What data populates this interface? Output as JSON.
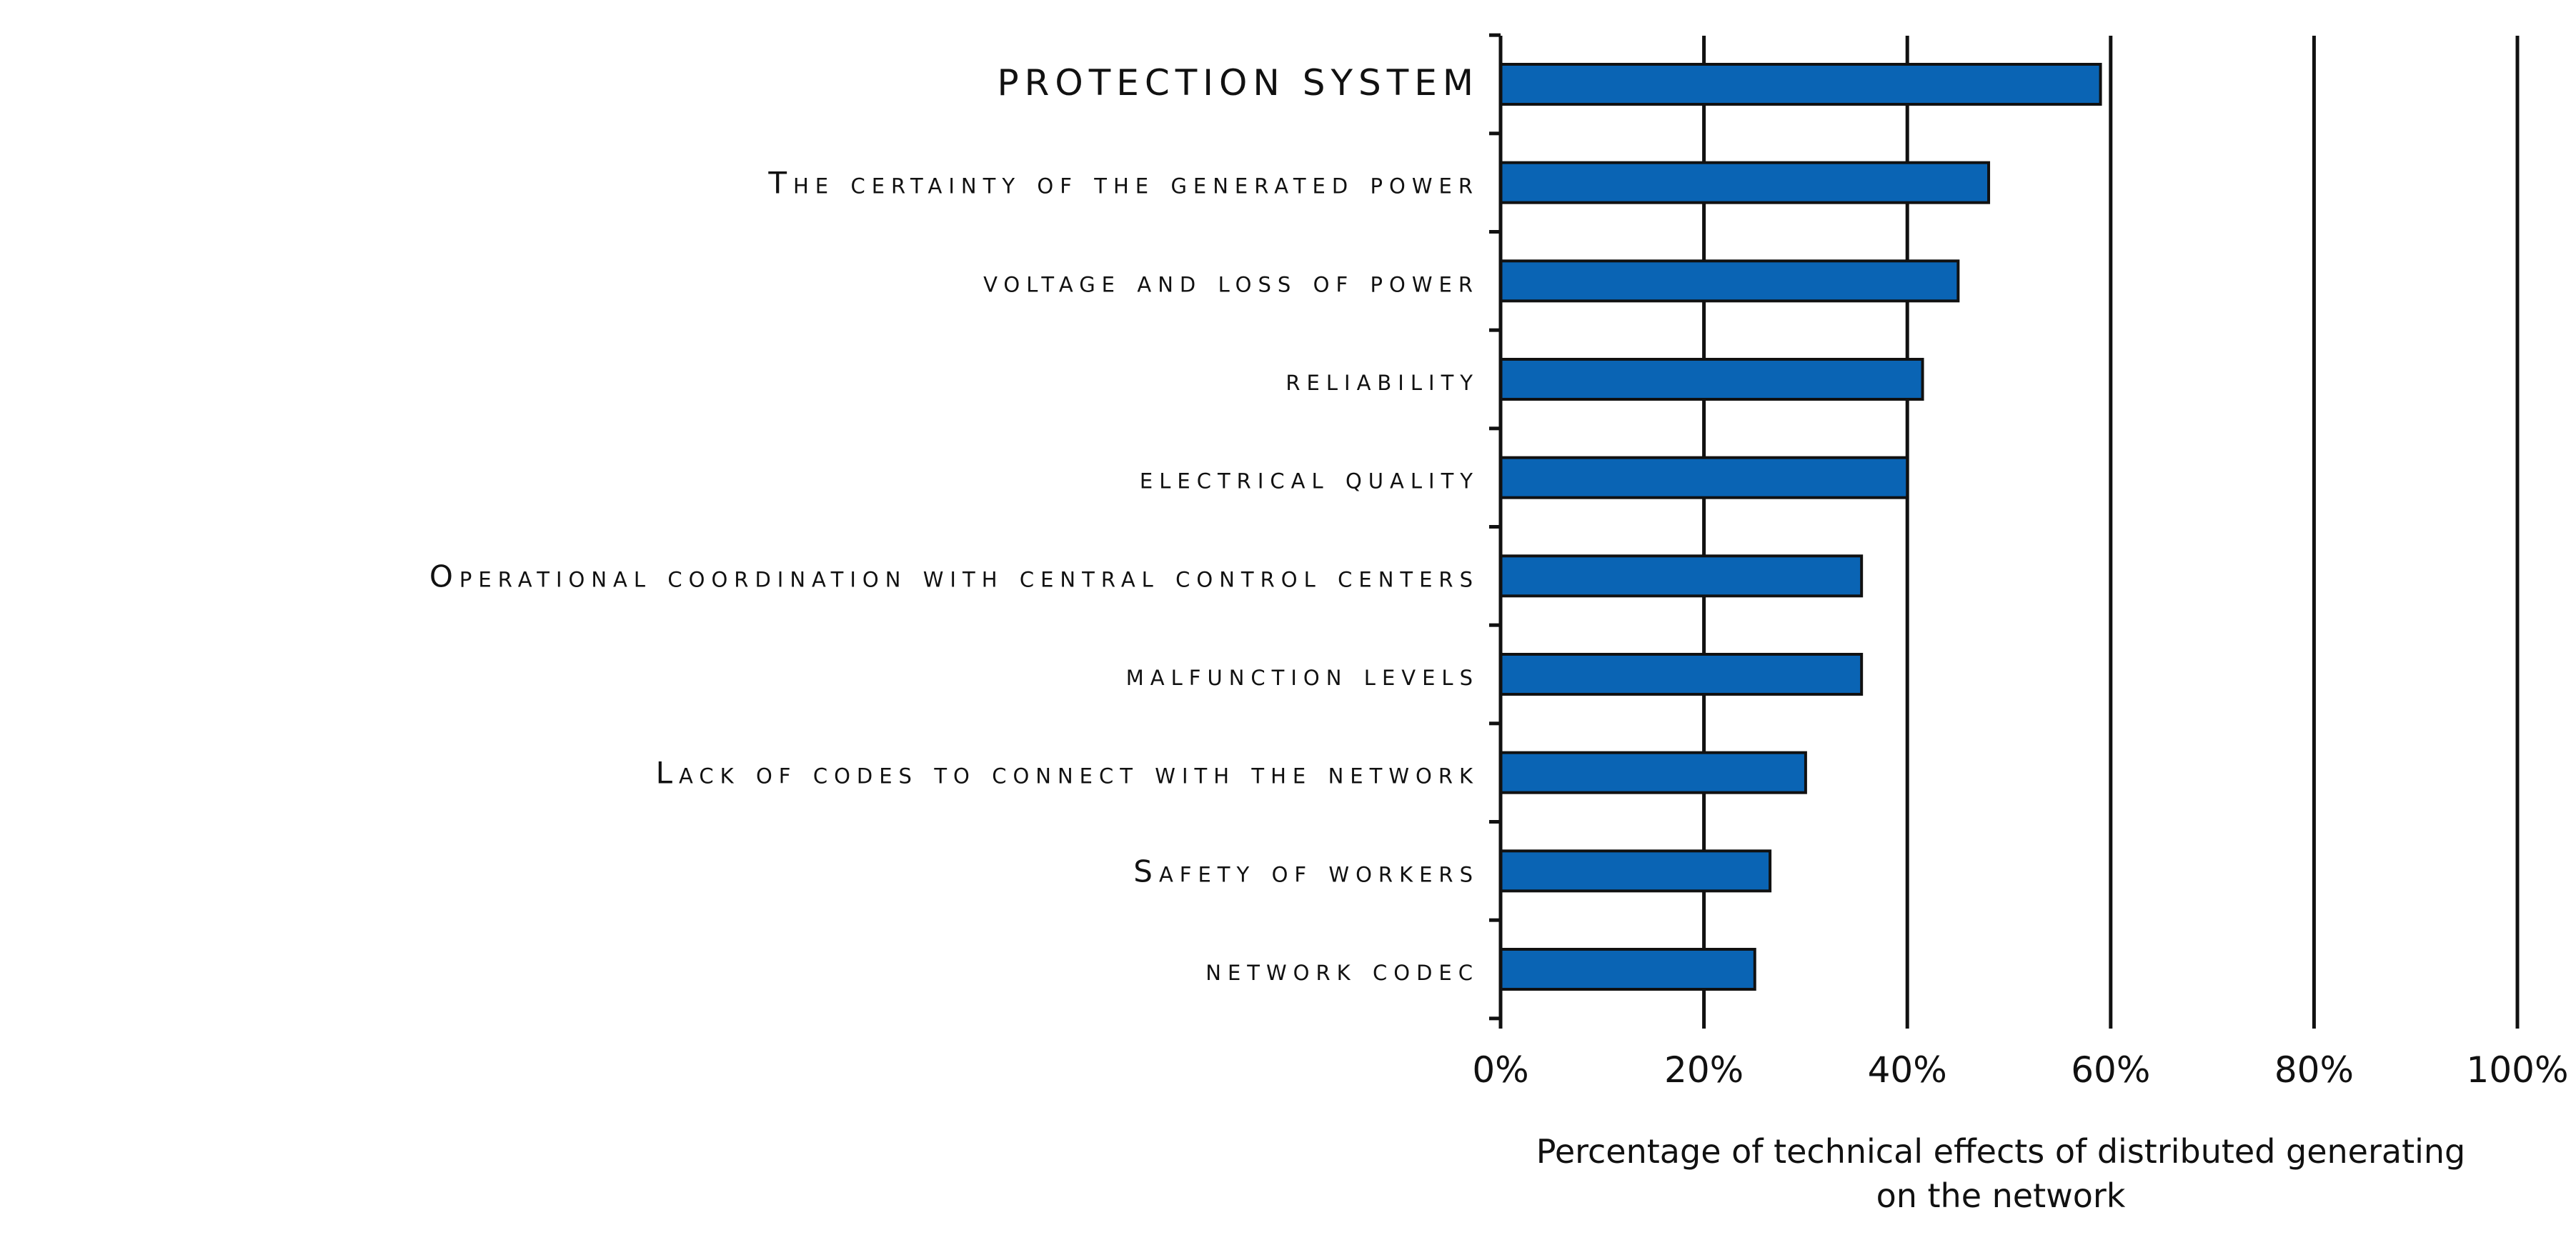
{
  "chart_data": {
    "type": "bar",
    "orientation": "horizontal",
    "categories": [
      "PROTECTION SYSTEM",
      "The certainty of the generated power",
      "voltage and loss of power",
      "reliability",
      "electrical quality",
      "Operational coordination with central control centers",
      "malfunction levels",
      "Lack of codes to connect with the network",
      "Safety of workers",
      "network codec"
    ],
    "values": [
      59,
      48,
      45,
      41.5,
      40,
      35.5,
      35.5,
      30,
      26.5,
      25
    ],
    "bar_color": "#0a64b4",
    "xlim": [
      0,
      100
    ],
    "xticks": [
      0,
      20,
      40,
      60,
      80,
      100
    ],
    "xtick_labels": [
      "0%",
      "20%",
      "40%",
      "60%",
      "80%",
      "100%"
    ],
    "xlabel": [
      "Percentage of technical effects of distributed generating",
      "on the network"
    ],
    "ylabel": "",
    "title": "",
    "grid": "vertical",
    "legend": "none"
  }
}
